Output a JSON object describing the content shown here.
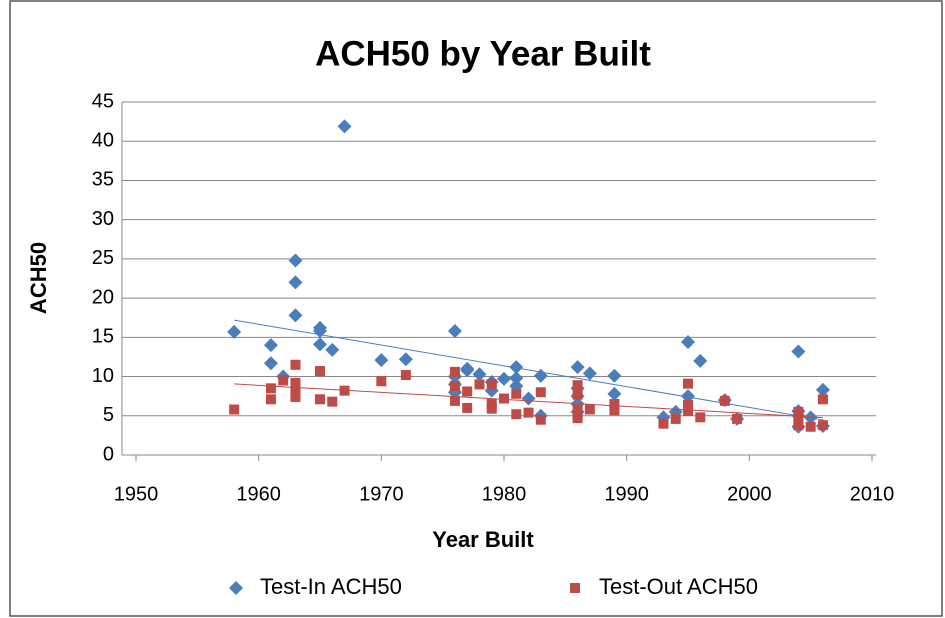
{
  "chart_data": {
    "type": "scatter",
    "title": "ACH50 by Year Built",
    "x_label": "Year Built",
    "y_label": "ACH50",
    "xlim": [
      1950,
      2010
    ],
    "xticks": [
      1950,
      1960,
      1970,
      1980,
      1990,
      2000,
      2010
    ],
    "ylim": [
      0,
      45
    ],
    "yticks": [
      0,
      5,
      10,
      15,
      20,
      25,
      30,
      35,
      40,
      45
    ],
    "grid": true,
    "legend": "bottom",
    "series": [
      {
        "name": "Test-In ACH50",
        "color": "#4a7ebb",
        "marker": "diamond",
        "trendline": "linear",
        "x": [
          1958,
          1961,
          1961,
          1962,
          1963,
          1963,
          1963,
          1965,
          1965,
          1965,
          1966,
          1967,
          1970,
          1972,
          1976,
          1976,
          1976,
          1976,
          1977,
          1977,
          1978,
          1979,
          1979,
          1980,
          1981,
          1981,
          1981,
          1982,
          1983,
          1983,
          1986,
          1986,
          1986,
          1986,
          1986,
          1987,
          1989,
          1989,
          1993,
          1994,
          1995,
          1995,
          1996,
          1998,
          1999,
          2004,
          2004,
          2004,
          2004,
          2005,
          2006,
          2006
        ],
        "values": [
          15.7,
          14,
          11.7,
          10,
          24.8,
          22,
          17.8,
          16.2,
          15.8,
          14.1,
          13.4,
          41.9,
          12.1,
          12.2,
          15.8,
          10,
          9,
          8,
          11,
          10.8,
          10.3,
          9.3,
          8.2,
          9.7,
          11.2,
          9.8,
          8.8,
          7.2,
          10.1,
          5,
          11.2,
          8.5,
          7.5,
          6.5,
          5.5,
          10.4,
          10.1,
          7.8,
          4.8,
          5.5,
          14.4,
          7.5,
          12,
          7,
          4.6,
          13.2,
          5.6,
          5,
          3.6,
          4.8,
          8.3,
          3.7
        ]
      },
      {
        "name": "Test-Out ACH50",
        "color": "#be4b48",
        "marker": "square",
        "trendline": "linear",
        "x": [
          1958,
          1961,
          1961,
          1962,
          1963,
          1963,
          1963,
          1963,
          1965,
          1965,
          1966,
          1967,
          1970,
          1972,
          1976,
          1976,
          1976,
          1977,
          1977,
          1978,
          1979,
          1979,
          1979,
          1980,
          1981,
          1981,
          1982,
          1983,
          1983,
          1986,
          1986,
          1986,
          1986,
          1986,
          1987,
          1989,
          1989,
          1993,
          1994,
          1995,
          1995,
          1995,
          1996,
          1998,
          1999,
          2004,
          2004,
          2004,
          2005,
          2006,
          2006
        ],
        "values": [
          5.8,
          8.5,
          7.1,
          9.5,
          11.5,
          9.2,
          8,
          7.4,
          10.7,
          7.1,
          6.8,
          8.2,
          9.4,
          10.2,
          10.6,
          8.8,
          6.9,
          8.1,
          6,
          9,
          9,
          6.5,
          5.9,
          7.2,
          7.8,
          5.2,
          5.4,
          8,
          4.5,
          8.9,
          7.7,
          6,
          5.2,
          4.7,
          5.8,
          6.5,
          5.7,
          4,
          4.6,
          9.1,
          6.4,
          5.6,
          4.8,
          6.9,
          4.6,
          5.5,
          4.5,
          3.8,
          3.6,
          7.1,
          3.8
        ]
      }
    ]
  }
}
